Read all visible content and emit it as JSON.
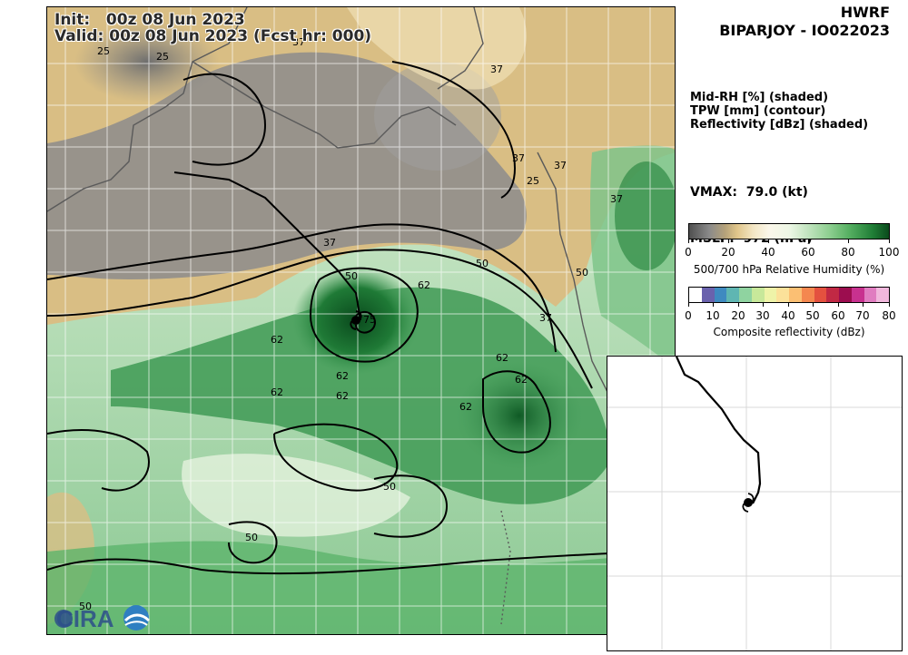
{
  "header": {
    "init": "Init:   00z 08 Jun 2023",
    "valid": "Valid: 00z 08 Jun 2023 (Fcst hr: 000)"
  },
  "title": {
    "model": "HWRF",
    "storm": "BIPARJOY - IO022023"
  },
  "fields": {
    "line1": "Mid-RH [%] (shaded)",
    "line2": "TPW [mm] (contour)",
    "line3": "Reflectivity [dBz] (shaded)"
  },
  "stats": {
    "vmax": "VMAX:  79.0 (kt)",
    "mslp": "MSLP:  972 (hPa)"
  },
  "colorbar_rh": {
    "ticks": [
      "0",
      "20",
      "40",
      "60",
      "80",
      "100"
    ],
    "label": "500/700 hPa Relative Humidity (%)"
  },
  "colorbar_ref": {
    "ticks": [
      "0",
      "10",
      "20",
      "30",
      "40",
      "50",
      "60",
      "70",
      "80"
    ],
    "label": "Composite reflectivity (dBz)",
    "colors": [
      "#ffffff",
      "#6a62ad",
      "#3f8ac0",
      "#5fb6b2",
      "#8fd3a0",
      "#c7e89a",
      "#eef3a8",
      "#fbe19a",
      "#fbbf73",
      "#f4874f",
      "#e4513f",
      "#c12944",
      "#9c0d4f",
      "#c8318f",
      "#e07cc0",
      "#f1b7dc"
    ]
  },
  "contour_labels": [
    "25",
    "25",
    "37",
    "37",
    "37",
    "25",
    "37",
    "37",
    "37",
    "50",
    "50",
    "50",
    "50",
    "50",
    "62",
    "62",
    "62",
    "62",
    "62",
    "62",
    "62",
    "62",
    "75",
    "50",
    "37"
  ],
  "logo": {
    "text": "CIRA"
  },
  "colors": {
    "land_dry": "#8c8c8c",
    "land_tan": "#d9be84",
    "moist_green": "#2f8a45",
    "contour": "#000000",
    "border": "#555555"
  }
}
